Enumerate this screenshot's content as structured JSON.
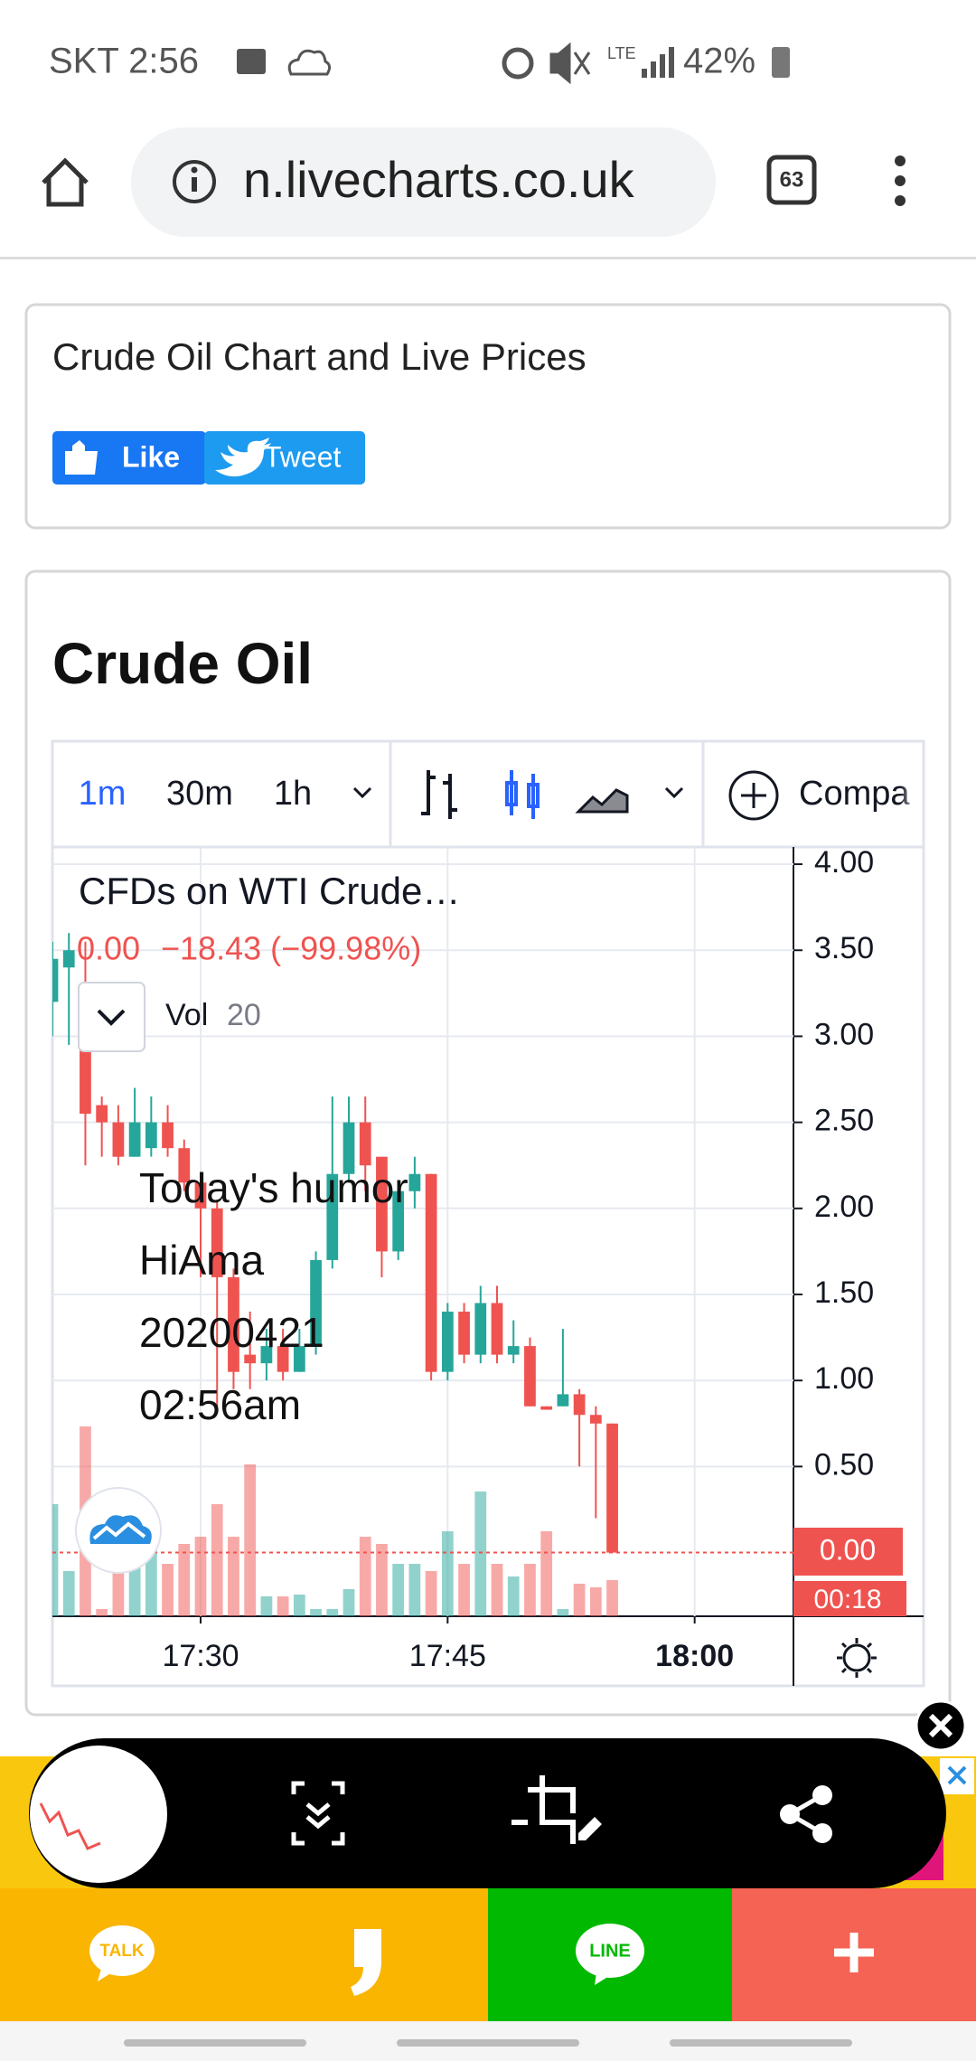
{
  "status_bar": {
    "carrier_time": "SKT 2:56",
    "network": "LTE",
    "battery": "42%"
  },
  "browser": {
    "url": "n.livecharts.co.uk",
    "tab_count": "63"
  },
  "header_card": {
    "title": "Crude Oil Chart and Live Prices",
    "like": "Like",
    "tweet": "Tweet"
  },
  "chart_card": {
    "title": "Crude Oil",
    "toolbar": {
      "intervals": [
        "1m",
        "30m",
        "1h"
      ],
      "compare": "Compa"
    },
    "legend": {
      "symbol": "CFDs on WTI Crude…",
      "last": "0.00",
      "change": "−18.43 (−99.98%)",
      "volume_label": "Vol"
    },
    "price_badge": "0.00",
    "countdown": "00:18",
    "watermark": [
      "Today's humor",
      "HiAma",
      "20200421",
      "02:56am"
    ]
  },
  "chart_data": {
    "type": "candlestick",
    "x": [
      "17:21",
      "17:22",
      "17:23",
      "17:24",
      "17:25",
      "17:26",
      "17:27",
      "17:28",
      "17:29",
      "17:30",
      "17:31",
      "17:32",
      "17:33",
      "17:34",
      "17:35",
      "17:36",
      "17:37",
      "17:38",
      "17:39",
      "17:40",
      "17:41",
      "17:42",
      "17:43",
      "17:44",
      "17:45",
      "17:46",
      "17:47",
      "17:48",
      "17:49",
      "17:50",
      "17:51",
      "17:52",
      "17:53",
      "17:54",
      "17:55"
    ],
    "open": [
      3.2,
      3.4,
      3.1,
      2.6,
      2.5,
      2.3,
      2.35,
      2.5,
      2.35,
      2.15,
      2.0,
      1.6,
      1.15,
      1.1,
      1.2,
      1.05,
      1.2,
      1.7,
      2.2,
      2.5,
      2.3,
      1.75,
      2.1,
      2.2,
      1.05,
      1.4,
      1.15,
      1.45,
      1.15,
      1.2,
      0.85,
      0.85,
      0.92,
      0.8,
      0.75
    ],
    "high": [
      3.55,
      3.6,
      3.55,
      2.65,
      2.6,
      2.7,
      2.65,
      2.6,
      2.4,
      2.2,
      2.05,
      1.65,
      1.4,
      1.3,
      1.3,
      1.3,
      1.75,
      2.65,
      2.65,
      2.65,
      2.3,
      2.15,
      2.3,
      2.2,
      1.45,
      1.45,
      1.55,
      1.55,
      1.35,
      1.25,
      0.85,
      1.3,
      0.95,
      0.85,
      0.75
    ],
    "low": [
      3.0,
      2.95,
      2.25,
      2.3,
      2.25,
      2.3,
      2.3,
      2.3,
      2.1,
      1.6,
      0.85,
      0.95,
      0.95,
      1.0,
      1.0,
      1.05,
      1.15,
      1.65,
      2.15,
      2.1,
      1.6,
      1.7,
      2.0,
      1.0,
      1.0,
      1.1,
      1.1,
      1.1,
      1.1,
      0.85,
      0.83,
      0.85,
      0.5,
      0.2,
      0.0
    ],
    "close": [
      3.45,
      3.5,
      2.55,
      2.5,
      2.3,
      2.5,
      2.5,
      2.35,
      2.15,
      2.0,
      1.6,
      1.05,
      1.1,
      1.2,
      1.05,
      1.2,
      1.7,
      2.2,
      2.5,
      2.25,
      1.75,
      2.1,
      2.2,
      1.05,
      1.4,
      1.15,
      1.45,
      1.15,
      1.2,
      0.85,
      0.83,
      0.92,
      0.8,
      0.75,
      0.0
    ],
    "volume": [
      62,
      25,
      105,
      4,
      29,
      44,
      40,
      29,
      40,
      44,
      62,
      44,
      84,
      11,
      11,
      12,
      4,
      4,
      15,
      44,
      40,
      29,
      29,
      25,
      47,
      29,
      69,
      29,
      22,
      29,
      47,
      4,
      18,
      16,
      20
    ],
    "up_color": "#26a69a",
    "down_color": "#ef5350",
    "xlim": [
      "17:21",
      "18:06"
    ],
    "xticks": [
      "17:30",
      "17:45",
      "18:00"
    ],
    "ylim": [
      -0.37,
      4.1
    ],
    "yticks": [
      {
        "value": 0.5,
        "label": "0.50"
      },
      {
        "value": 1,
        "label": "1.00"
      },
      {
        "value": 1.5,
        "label": "1.50"
      },
      {
        "value": 2,
        "label": "2.00"
      },
      {
        "value": 2.5,
        "label": "2.50"
      },
      {
        "value": 3,
        "label": "3.00"
      },
      {
        "value": 3.5,
        "label": "3.50"
      },
      {
        "value": 4,
        "label": "4.00"
      }
    ],
    "volume_ylim": [
      0,
      100
    ],
    "grid": true
  },
  "share_bar": {
    "talk": "TALK",
    "line": "LINE"
  }
}
